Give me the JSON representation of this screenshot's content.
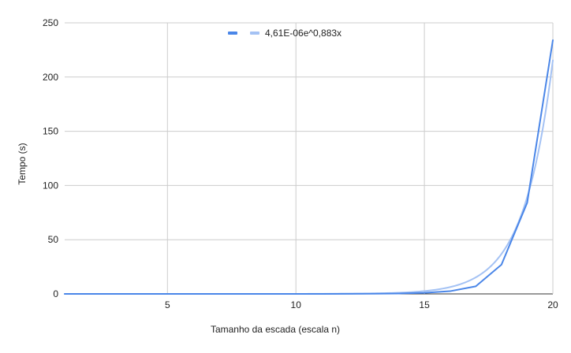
{
  "chart_data": {
    "type": "line",
    "title": "",
    "xlabel": "Tamanho da escada (escala n)",
    "ylabel": "Tempo (s)",
    "xlim": [
      1,
      20
    ],
    "ylim": [
      0,
      250
    ],
    "xticks": [
      5,
      10,
      15,
      20
    ],
    "yticks": [
      0,
      50,
      100,
      150,
      200,
      250
    ],
    "grid": true,
    "legend_position": "top",
    "series": [
      {
        "name": "",
        "color": "#4a86e8",
        "x": [
          1,
          2,
          3,
          4,
          5,
          6,
          7,
          8,
          9,
          10,
          11,
          12,
          13,
          14,
          15,
          16,
          17,
          18,
          19,
          20
        ],
        "y": [
          0,
          0,
          0,
          0,
          0,
          0,
          0,
          0,
          0,
          0,
          0.02,
          0.05,
          0.15,
          0.4,
          1,
          2.5,
          7,
          27,
          84,
          234
        ]
      }
    ],
    "trendline": {
      "name": "4,61E-06e^0,883x",
      "type": "exponential",
      "a": 4.61e-06,
      "b": 0.883,
      "color": "#a4c2f4"
    }
  }
}
